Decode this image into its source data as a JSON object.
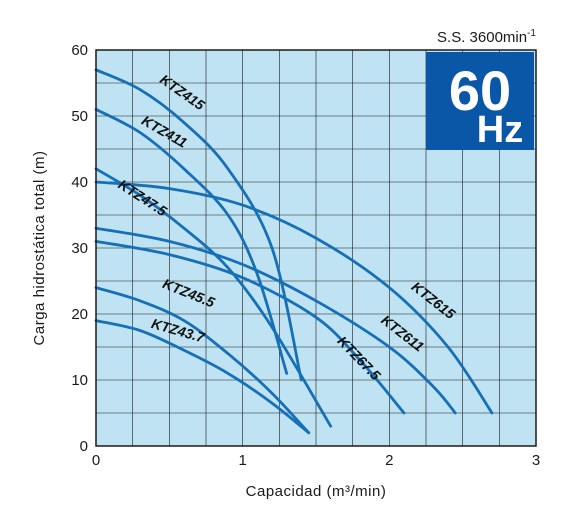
{
  "chart_data": {
    "type": "line",
    "xlabel": "Capacidad (m³/min)",
    "ylabel": "Carga hidrostática total (m)",
    "xlim": [
      0,
      3
    ],
    "ylim": [
      0,
      60
    ],
    "x_ticks": [
      "0",
      "1",
      "2",
      "3"
    ],
    "y_ticks": [
      "0",
      "10",
      "20",
      "30",
      "40",
      "50",
      "60"
    ],
    "grid": true,
    "speed_label": "S.S. 3600min",
    "speed_superscript": "-1",
    "badge": {
      "number": "60",
      "unit": "Hz",
      "color": "#0a57a8"
    },
    "plot_background": "#bfe3f2",
    "curve_color": "#1670b8",
    "series": [
      {
        "name": "KTZ415",
        "x": [
          0,
          0.3,
          0.6,
          0.9,
          1.2,
          1.4
        ],
        "y": [
          57,
          54,
          49,
          42,
          30,
          10
        ]
      },
      {
        "name": "KTZ411",
        "x": [
          0,
          0.3,
          0.6,
          0.9,
          1.1,
          1.3
        ],
        "y": [
          51,
          47.5,
          42,
          35,
          26,
          11
        ]
      },
      {
        "name": "KTZ47.5",
        "x": [
          0,
          0.3,
          0.6,
          0.9,
          1.2,
          1.6
        ],
        "y": [
          42,
          38,
          33,
          27,
          18,
          3
        ]
      },
      {
        "name": "KTZ615",
        "x": [
          0,
          0.5,
          1.0,
          1.5,
          2.0,
          2.4,
          2.7
        ],
        "y": [
          40,
          39,
          36.5,
          31.5,
          24,
          15,
          5
        ]
      },
      {
        "name": "KTZ611",
        "x": [
          0,
          0.5,
          1.0,
          1.5,
          2.0,
          2.3,
          2.45
        ],
        "y": [
          33,
          31,
          27.5,
          22,
          15,
          9,
          5
        ]
      },
      {
        "name": "KTZ67.5",
        "x": [
          0,
          0.5,
          1.0,
          1.5,
          1.8,
          2.1
        ],
        "y": [
          31,
          29,
          25.5,
          19.5,
          13,
          5
        ]
      },
      {
        "name": "KTZ45.5",
        "x": [
          0,
          0.3,
          0.6,
          0.9,
          1.2,
          1.45
        ],
        "y": [
          24,
          22,
          19,
          14,
          8,
          2
        ]
      },
      {
        "name": "KTZ43.7",
        "x": [
          0,
          0.3,
          0.6,
          0.9,
          1.2,
          1.45
        ],
        "y": [
          19,
          17.5,
          14.5,
          11,
          6.5,
          2
        ]
      }
    ]
  }
}
